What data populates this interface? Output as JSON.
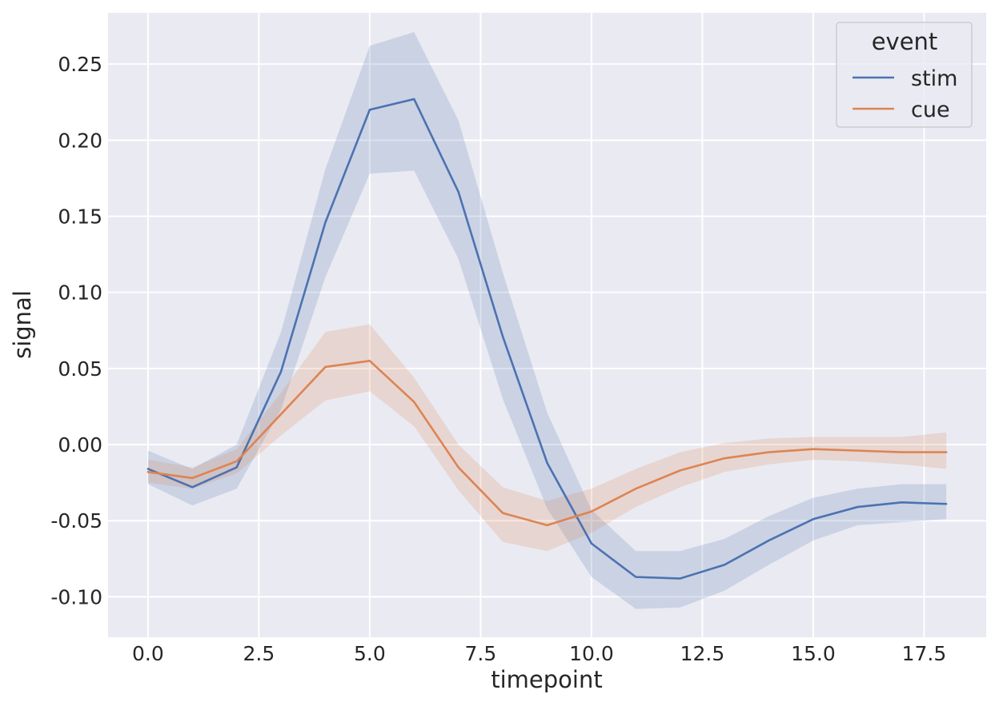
{
  "chart_data": {
    "type": "line",
    "xlabel": "timepoint",
    "ylabel": "signal",
    "xlim": [
      -0.9,
      18.9
    ],
    "ylim": [
      -0.1266,
      0.2837
    ],
    "xticks": [
      0.0,
      2.5,
      5.0,
      7.5,
      10.0,
      12.5,
      15.0,
      17.5
    ],
    "xtick_labels": [
      "0.0",
      "2.5",
      "5.0",
      "7.5",
      "10.0",
      "12.5",
      "15.0",
      "17.5"
    ],
    "yticks": [
      -0.1,
      -0.05,
      0.0,
      0.05,
      0.1,
      0.15,
      0.2,
      0.25
    ],
    "ytick_labels": [
      "-0.10",
      "-0.05",
      "0.00",
      "0.05",
      "0.10",
      "0.15",
      "0.20",
      "0.25"
    ],
    "grid": true,
    "legend": {
      "title": "event",
      "placement": "top-right"
    },
    "x": [
      0,
      1,
      2,
      3,
      4,
      5,
      6,
      7,
      8,
      9,
      10,
      11,
      12,
      13,
      14,
      15,
      16,
      17,
      18
    ],
    "series": [
      {
        "name": "stim",
        "color": "#4c72b0",
        "values": [
          -0.016,
          -0.028,
          -0.015,
          0.048,
          0.146,
          0.22,
          0.227,
          0.166,
          0.071,
          -0.012,
          -0.065,
          -0.087,
          -0.088,
          -0.079,
          -0.063,
          -0.049,
          -0.041,
          -0.038,
          -0.039
        ],
        "ci_lower": [
          -0.026,
          -0.04,
          -0.029,
          0.023,
          0.11,
          0.178,
          0.18,
          0.122,
          0.03,
          -0.042,
          -0.087,
          -0.108,
          -0.107,
          -0.096,
          -0.079,
          -0.063,
          -0.053,
          -0.051,
          -0.049
        ],
        "ci_upper": [
          -0.004,
          -0.016,
          0.0,
          0.074,
          0.181,
          0.262,
          0.271,
          0.213,
          0.113,
          0.021,
          -0.043,
          -0.07,
          -0.07,
          -0.062,
          -0.047,
          -0.035,
          -0.029,
          -0.026,
          -0.026
        ]
      },
      {
        "name": "cue",
        "color": "#dd8452",
        "values": [
          -0.018,
          -0.022,
          -0.011,
          0.02,
          0.051,
          0.055,
          0.028,
          -0.015,
          -0.045,
          -0.053,
          -0.044,
          -0.029,
          -0.017,
          -0.009,
          -0.005,
          -0.003,
          -0.004,
          -0.005,
          -0.005
        ],
        "ci_lower": [
          -0.025,
          -0.029,
          -0.019,
          0.006,
          0.029,
          0.035,
          0.012,
          -0.03,
          -0.064,
          -0.07,
          -0.058,
          -0.041,
          -0.028,
          -0.018,
          -0.013,
          -0.01,
          -0.011,
          -0.013,
          -0.016
        ],
        "ci_upper": [
          -0.01,
          -0.015,
          -0.003,
          0.034,
          0.074,
          0.079,
          0.044,
          0.0,
          -0.028,
          -0.037,
          -0.029,
          -0.016,
          -0.005,
          0.001,
          0.004,
          0.005,
          0.005,
          0.005,
          0.008
        ]
      }
    ]
  }
}
